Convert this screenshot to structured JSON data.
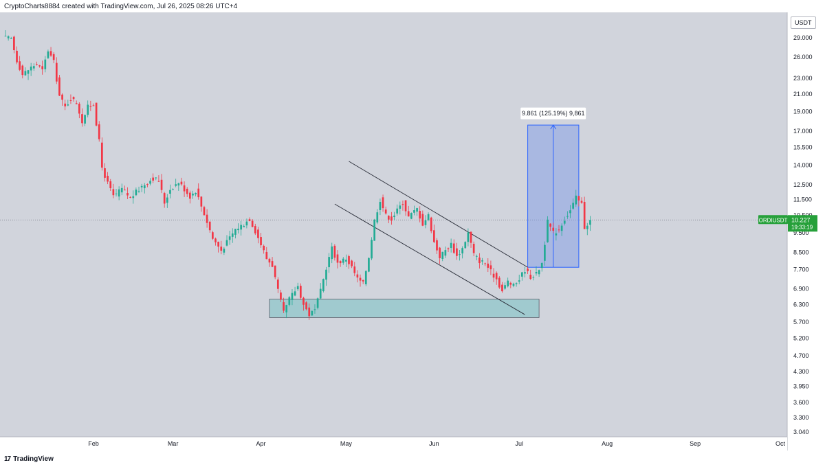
{
  "header": {
    "text": "CryptoCharts8884 created with TradingView.com, Jul 26, 2025 08:26 UTC+4"
  },
  "footer": {
    "logo_mark": "17",
    "logo_text": "TradingView"
  },
  "currency": "USDT",
  "price_label": {
    "symbol": "ORDIUSDT",
    "price": "10.227",
    "countdown": "19:33:19"
  },
  "measure_label": "9.861 (125.19%) 9,861",
  "colors": {
    "up": "#22ab94",
    "down": "#f23645",
    "background": "#d1d4dc",
    "accent": "#2962ff",
    "label_green": "#26a03a"
  },
  "chart_data": {
    "type": "candlestick",
    "scale": "log",
    "y_ticks": [
      29,
      26,
      23,
      21,
      19,
      17,
      15.5,
      14,
      12.5,
      11.5,
      10.5,
      9.5,
      8.5,
      7.7,
      6.9,
      6.3,
      5.7,
      5.2,
      4.7,
      4.3,
      3.95,
      3.6,
      3.3,
      3.04
    ],
    "y_tick_labels": [
      "29.000",
      "26.000",
      "23.000",
      "21.000",
      "19.000",
      "17.000",
      "15.500",
      "14.000",
      "12.500",
      "11.500",
      "10.500",
      "9.500",
      "8.500",
      "7.700",
      "6.900",
      "6.300",
      "5.700",
      "5.200",
      "4.700",
      "4.300",
      "3.950",
      "3.600",
      "3.300",
      "3.040"
    ],
    "x_labels": [
      "Feb",
      "Mar",
      "Apr",
      "May",
      "Jun",
      "Jul",
      "Aug",
      "Sep",
      "Oct"
    ],
    "x_label_dates": [
      "2025-02-01",
      "2025-03-01",
      "2025-04-01",
      "2025-05-01",
      "2025-06-01",
      "2025-07-01",
      "2025-08-01",
      "2025-09-01",
      "2025-10-01"
    ],
    "x_range": [
      "2025-01-01",
      "2025-10-01"
    ],
    "last_price": 10.227,
    "key_points": [
      [
        "2025-01-01",
        29.0
      ],
      [
        "2025-01-03",
        28.8
      ],
      [
        "2025-01-05",
        25.5
      ],
      [
        "2025-01-07",
        23.5
      ],
      [
        "2025-01-10",
        24.5
      ],
      [
        "2025-01-12",
        25.0
      ],
      [
        "2025-01-14",
        24.0
      ],
      [
        "2025-01-16",
        27.0
      ],
      [
        "2025-01-18",
        25.2
      ],
      [
        "2025-01-20",
        20.8
      ],
      [
        "2025-01-22",
        19.5
      ],
      [
        "2025-01-24",
        20.5
      ],
      [
        "2025-01-26",
        20.0
      ],
      [
        "2025-01-28",
        18.0
      ],
      [
        "2025-01-30",
        19.5
      ],
      [
        "2025-02-01",
        19.8
      ],
      [
        "2025-02-03",
        16.0
      ],
      [
        "2025-02-04",
        13.8
      ],
      [
        "2025-02-06",
        12.6
      ],
      [
        "2025-02-08",
        11.7
      ],
      [
        "2025-02-11",
        12.2
      ],
      [
        "2025-02-14",
        11.6
      ],
      [
        "2025-02-18",
        12.4
      ],
      [
        "2025-02-22",
        13.0
      ],
      [
        "2025-02-24",
        12.8
      ],
      [
        "2025-02-26",
        11.3
      ],
      [
        "2025-02-28",
        12.2
      ],
      [
        "2025-03-03",
        12.7
      ],
      [
        "2025-03-05",
        12.2
      ],
      [
        "2025-03-07",
        11.7
      ],
      [
        "2025-03-09",
        12.1
      ],
      [
        "2025-03-12",
        10.6
      ],
      [
        "2025-03-15",
        9.2
      ],
      [
        "2025-03-18",
        8.6
      ],
      [
        "2025-03-20",
        9.0
      ],
      [
        "2025-03-23",
        9.7
      ],
      [
        "2025-03-26",
        10.0
      ],
      [
        "2025-03-28",
        10.3
      ],
      [
        "2025-03-30",
        9.6
      ],
      [
        "2025-04-01",
        8.9
      ],
      [
        "2025-04-03",
        8.2
      ],
      [
        "2025-04-05",
        7.9
      ],
      [
        "2025-04-07",
        6.8
      ],
      [
        "2025-04-09",
        6.0
      ],
      [
        "2025-04-11",
        6.5
      ],
      [
        "2025-04-14",
        7.0
      ],
      [
        "2025-04-16",
        6.3
      ],
      [
        "2025-04-18",
        5.95
      ],
      [
        "2025-04-20",
        6.1
      ],
      [
        "2025-04-22",
        6.8
      ],
      [
        "2025-04-24",
        7.8
      ],
      [
        "2025-04-26",
        8.7
      ],
      [
        "2025-04-28",
        8.0
      ],
      [
        "2025-05-01",
        8.2
      ],
      [
        "2025-05-03",
        7.8
      ],
      [
        "2025-05-05",
        7.3
      ],
      [
        "2025-05-07",
        7.1
      ],
      [
        "2025-05-09",
        8.3
      ],
      [
        "2025-05-11",
        10.2
      ],
      [
        "2025-05-13",
        11.5
      ],
      [
        "2025-05-15",
        10.5
      ],
      [
        "2025-05-17",
        10.3
      ],
      [
        "2025-05-19",
        10.8
      ],
      [
        "2025-05-21",
        11.3
      ],
      [
        "2025-05-23",
        10.4
      ],
      [
        "2025-05-26",
        10.9
      ],
      [
        "2025-05-28",
        10.0
      ],
      [
        "2025-05-30",
        10.5
      ],
      [
        "2025-06-01",
        9.0
      ],
      [
        "2025-06-03",
        8.3
      ],
      [
        "2025-06-05",
        8.6
      ],
      [
        "2025-06-07",
        8.9
      ],
      [
        "2025-06-09",
        8.3
      ],
      [
        "2025-06-11",
        8.7
      ],
      [
        "2025-06-13",
        9.5
      ],
      [
        "2025-06-15",
        8.4
      ],
      [
        "2025-06-17",
        8.1
      ],
      [
        "2025-06-19",
        8.0
      ],
      [
        "2025-06-21",
        7.6
      ],
      [
        "2025-06-23",
        7.3
      ],
      [
        "2025-06-25",
        6.8
      ],
      [
        "2025-06-27",
        7.2
      ],
      [
        "2025-06-29",
        7.0
      ],
      [
        "2025-07-01",
        7.3
      ],
      [
        "2025-07-03",
        7.7
      ],
      [
        "2025-07-05",
        7.4
      ],
      [
        "2025-07-07",
        7.5
      ],
      [
        "2025-07-09",
        8.0
      ],
      [
        "2025-07-11",
        10.1
      ],
      [
        "2025-07-13",
        9.5
      ],
      [
        "2025-07-15",
        9.7
      ],
      [
        "2025-07-17",
        10.3
      ],
      [
        "2025-07-19",
        10.8
      ],
      [
        "2025-07-21",
        11.6
      ],
      [
        "2025-07-23",
        11.2
      ],
      [
        "2025-07-24",
        9.8
      ],
      [
        "2025-07-26",
        10.227
      ]
    ]
  },
  "annotations": {
    "demand_zone": {
      "x": [
        "2025-04-04",
        "2025-07-08"
      ],
      "y": [
        6.5,
        5.85
      ]
    },
    "upper_channel": {
      "x": [
        "2025-05-02",
        "2025-07-04"
      ],
      "y": [
        14.3,
        7.8
      ]
    },
    "lower_channel": {
      "x": [
        "2025-04-27",
        "2025-07-03"
      ],
      "y": [
        11.2,
        5.95
      ]
    },
    "measure_box": {
      "x": [
        "2025-07-04",
        "2025-07-22"
      ],
      "y": [
        7.8,
        17.6
      ]
    }
  }
}
